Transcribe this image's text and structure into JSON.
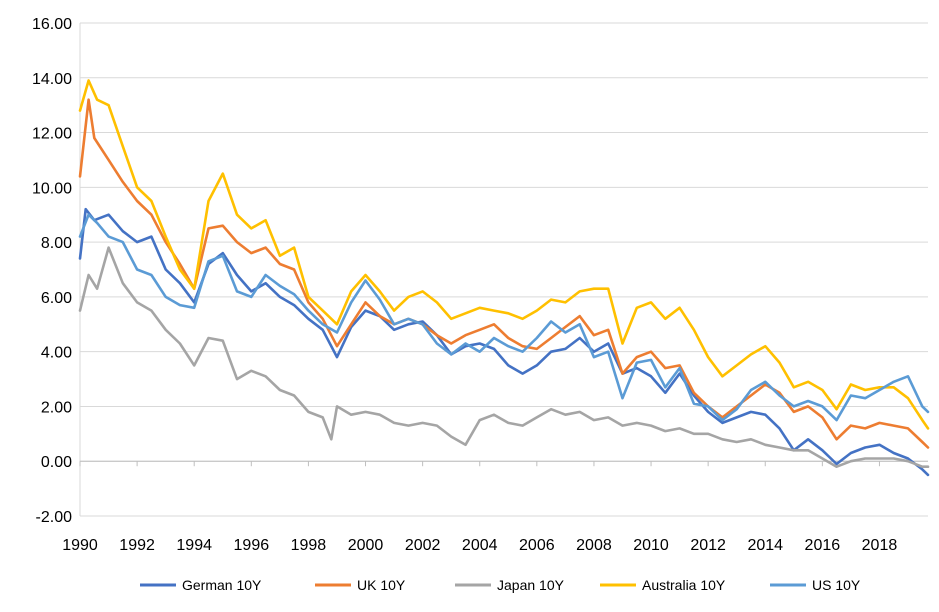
{
  "chart_data": {
    "type": "line",
    "title": "",
    "xlabel": "",
    "ylabel": "",
    "ylim": [
      -2,
      16
    ],
    "xlim": [
      1990,
      2019.7
    ],
    "grid": {
      "horizontal": true,
      "vertical": false
    },
    "legend_position": "bottom",
    "y_ticks": [
      -2,
      0,
      2,
      4,
      6,
      8,
      10,
      12,
      14,
      16
    ],
    "y_tick_labels": [
      "-2.00",
      "0.00",
      "2.00",
      "4.00",
      "6.00",
      "8.00",
      "10.00",
      "12.00",
      "14.00",
      "16.00"
    ],
    "x_ticks": [
      1990,
      1992,
      1994,
      1996,
      1998,
      2000,
      2002,
      2004,
      2006,
      2008,
      2010,
      2012,
      2014,
      2016,
      2018
    ],
    "x_tick_labels": [
      "1990",
      "1992",
      "1994",
      "1996",
      "1998",
      "2000",
      "2002",
      "2004",
      "2006",
      "2008",
      "2010",
      "2012",
      "2014",
      "2016",
      "2018"
    ],
    "series": [
      {
        "name": "German 10Y",
        "color": "#4472C4",
        "x": [
          1990.0,
          1990.2,
          1990.5,
          1991.0,
          1991.5,
          1992.0,
          1992.5,
          1993.0,
          1993.5,
          1994.0,
          1994.5,
          1995.0,
          1995.5,
          1996.0,
          1996.5,
          1997.0,
          1997.5,
          1998.0,
          1998.5,
          1999.0,
          1999.5,
          2000.0,
          2000.5,
          2001.0,
          2001.5,
          2002.0,
          2002.5,
          2003.0,
          2003.5,
          2004.0,
          2004.5,
          2005.0,
          2005.5,
          2006.0,
          2006.5,
          2007.0,
          2007.5,
          2008.0,
          2008.5,
          2009.0,
          2009.5,
          2010.0,
          2010.5,
          2011.0,
          2011.5,
          2012.0,
          2012.5,
          2013.0,
          2013.5,
          2014.0,
          2014.5,
          2015.0,
          2015.5,
          2016.0,
          2016.5,
          2017.0,
          2017.5,
          2018.0,
          2018.5,
          2019.0,
          2019.5,
          2019.7
        ],
        "values": [
          7.4,
          9.2,
          8.8,
          9.0,
          8.4,
          8.0,
          8.2,
          7.0,
          6.5,
          5.8,
          7.2,
          7.6,
          6.8,
          6.2,
          6.5,
          6.0,
          5.7,
          5.2,
          4.8,
          3.8,
          4.9,
          5.5,
          5.3,
          4.8,
          5.0,
          5.1,
          4.6,
          3.9,
          4.2,
          4.3,
          4.1,
          3.5,
          3.2,
          3.5,
          4.0,
          4.1,
          4.5,
          4.0,
          4.3,
          3.2,
          3.4,
          3.1,
          2.5,
          3.2,
          2.4,
          1.8,
          1.4,
          1.6,
          1.8,
          1.7,
          1.2,
          0.4,
          0.8,
          0.4,
          -0.1,
          0.3,
          0.5,
          0.6,
          0.3,
          0.1,
          -0.3,
          -0.5
        ]
      },
      {
        "name": "UK 10Y",
        "color": "#ED7D31",
        "x": [
          1990.0,
          1990.3,
          1990.5,
          1991.0,
          1991.5,
          1992.0,
          1992.5,
          1993.0,
          1993.5,
          1994.0,
          1994.5,
          1995.0,
          1995.5,
          1996.0,
          1996.5,
          1997.0,
          1997.5,
          1998.0,
          1998.5,
          1999.0,
          1999.5,
          2000.0,
          2000.5,
          2001.0,
          2001.5,
          2002.0,
          2002.5,
          2003.0,
          2003.5,
          2004.0,
          2004.5,
          2005.0,
          2005.5,
          2006.0,
          2006.5,
          2007.0,
          2007.5,
          2008.0,
          2008.5,
          2009.0,
          2009.5,
          2010.0,
          2010.5,
          2011.0,
          2011.5,
          2012.0,
          2012.5,
          2013.0,
          2013.5,
          2014.0,
          2014.5,
          2015.0,
          2015.5,
          2016.0,
          2016.5,
          2017.0,
          2017.5,
          2018.0,
          2018.5,
          2019.0,
          2019.5,
          2019.7
        ],
        "values": [
          10.4,
          13.2,
          11.8,
          11.0,
          10.2,
          9.5,
          9.0,
          8.0,
          7.2,
          6.3,
          8.5,
          8.6,
          8.0,
          7.6,
          7.8,
          7.2,
          7.0,
          5.8,
          5.2,
          4.2,
          5.0,
          5.8,
          5.3,
          5.0,
          5.2,
          5.0,
          4.6,
          4.3,
          4.6,
          4.8,
          5.0,
          4.5,
          4.2,
          4.1,
          4.5,
          4.9,
          5.3,
          4.6,
          4.8,
          3.2,
          3.8,
          4.0,
          3.4,
          3.5,
          2.5,
          2.0,
          1.6,
          2.0,
          2.4,
          2.8,
          2.5,
          1.8,
          2.0,
          1.6,
          0.8,
          1.3,
          1.2,
          1.4,
          1.3,
          1.2,
          0.7,
          0.5
        ]
      },
      {
        "name": "Japan 10Y",
        "color": "#A5A5A5",
        "x": [
          1990.0,
          1990.3,
          1990.6,
          1991.0,
          1991.5,
          1992.0,
          1992.5,
          1993.0,
          1993.5,
          1994.0,
          1994.5,
          1995.0,
          1995.5,
          1996.0,
          1996.5,
          1997.0,
          1997.5,
          1998.0,
          1998.5,
          1998.8,
          1999.0,
          1999.5,
          2000.0,
          2000.5,
          2001.0,
          2001.5,
          2002.0,
          2002.5,
          2003.0,
          2003.5,
          2004.0,
          2004.5,
          2005.0,
          2005.5,
          2006.0,
          2006.5,
          2007.0,
          2007.5,
          2008.0,
          2008.5,
          2009.0,
          2009.5,
          2010.0,
          2010.5,
          2011.0,
          2011.5,
          2012.0,
          2012.5,
          2013.0,
          2013.5,
          2014.0,
          2014.5,
          2015.0,
          2015.5,
          2016.0,
          2016.5,
          2017.0,
          2017.5,
          2018.0,
          2018.5,
          2019.0,
          2019.5,
          2019.7
        ],
        "values": [
          5.5,
          6.8,
          6.3,
          7.8,
          6.5,
          5.8,
          5.5,
          4.8,
          4.3,
          3.5,
          4.5,
          4.4,
          3.0,
          3.3,
          3.1,
          2.6,
          2.4,
          1.8,
          1.6,
          0.8,
          2.0,
          1.7,
          1.8,
          1.7,
          1.4,
          1.3,
          1.4,
          1.3,
          0.9,
          0.6,
          1.5,
          1.7,
          1.4,
          1.3,
          1.6,
          1.9,
          1.7,
          1.8,
          1.5,
          1.6,
          1.3,
          1.4,
          1.3,
          1.1,
          1.2,
          1.0,
          1.0,
          0.8,
          0.7,
          0.8,
          0.6,
          0.5,
          0.4,
          0.4,
          0.1,
          -0.2,
          0.0,
          0.1,
          0.1,
          0.1,
          0.0,
          -0.2,
          -0.2
        ]
      },
      {
        "name": "Australia 10Y",
        "color": "#FFC000",
        "x": [
          1990.0,
          1990.3,
          1990.6,
          1991.0,
          1991.5,
          1992.0,
          1992.5,
          1993.0,
          1993.5,
          1994.0,
          1994.5,
          1995.0,
          1995.5,
          1996.0,
          1996.5,
          1997.0,
          1997.5,
          1998.0,
          1998.5,
          1999.0,
          1999.5,
          2000.0,
          2000.5,
          2001.0,
          2001.5,
          2002.0,
          2002.5,
          2003.0,
          2003.5,
          2004.0,
          2004.5,
          2005.0,
          2005.5,
          2006.0,
          2006.5,
          2007.0,
          2007.5,
          2008.0,
          2008.5,
          2009.0,
          2009.5,
          2010.0,
          2010.5,
          2011.0,
          2011.5,
          2012.0,
          2012.5,
          2013.0,
          2013.5,
          2014.0,
          2014.5,
          2015.0,
          2015.5,
          2016.0,
          2016.5,
          2017.0,
          2017.5,
          2018.0,
          2018.5,
          2019.0,
          2019.5,
          2019.7
        ],
        "values": [
          12.8,
          13.9,
          13.2,
          13.0,
          11.5,
          10.0,
          9.5,
          8.2,
          7.0,
          6.3,
          9.5,
          10.5,
          9.0,
          8.5,
          8.8,
          7.5,
          7.8,
          6.0,
          5.5,
          5.0,
          6.2,
          6.8,
          6.2,
          5.5,
          6.0,
          6.2,
          5.8,
          5.2,
          5.4,
          5.6,
          5.5,
          5.4,
          5.2,
          5.5,
          5.9,
          5.8,
          6.2,
          6.3,
          6.3,
          4.3,
          5.6,
          5.8,
          5.2,
          5.6,
          4.8,
          3.8,
          3.1,
          3.5,
          3.9,
          4.2,
          3.6,
          2.7,
          2.9,
          2.6,
          1.9,
          2.8,
          2.6,
          2.7,
          2.7,
          2.3,
          1.5,
          1.2
        ]
      },
      {
        "name": "US 10Y",
        "color": "#5B9BD5",
        "x": [
          1990.0,
          1990.3,
          1990.6,
          1991.0,
          1991.5,
          1992.0,
          1992.5,
          1993.0,
          1993.5,
          1994.0,
          1994.5,
          1995.0,
          1995.5,
          1996.0,
          1996.5,
          1997.0,
          1997.5,
          1998.0,
          1998.5,
          1999.0,
          1999.5,
          2000.0,
          2000.5,
          2001.0,
          2001.5,
          2002.0,
          2002.5,
          2003.0,
          2003.5,
          2004.0,
          2004.5,
          2005.0,
          2005.5,
          2006.0,
          2006.5,
          2007.0,
          2007.5,
          2008.0,
          2008.5,
          2009.0,
          2009.5,
          2010.0,
          2010.5,
          2011.0,
          2011.5,
          2012.0,
          2012.5,
          2013.0,
          2013.5,
          2014.0,
          2014.5,
          2015.0,
          2015.5,
          2016.0,
          2016.5,
          2017.0,
          2017.5,
          2018.0,
          2018.5,
          2019.0,
          2019.5,
          2019.7
        ],
        "values": [
          8.2,
          9.0,
          8.7,
          8.2,
          8.0,
          7.0,
          6.8,
          6.0,
          5.7,
          5.6,
          7.3,
          7.5,
          6.2,
          6.0,
          6.8,
          6.4,
          6.1,
          5.5,
          5.0,
          4.7,
          5.8,
          6.6,
          5.9,
          5.0,
          5.2,
          5.0,
          4.3,
          3.9,
          4.3,
          4.0,
          4.5,
          4.2,
          4.0,
          4.5,
          5.1,
          4.7,
          5.0,
          3.8,
          4.0,
          2.3,
          3.6,
          3.7,
          2.7,
          3.4,
          2.1,
          2.0,
          1.5,
          1.9,
          2.6,
          2.9,
          2.4,
          2.0,
          2.2,
          2.0,
          1.5,
          2.4,
          2.3,
          2.6,
          2.9,
          3.1,
          2.0,
          1.8
        ]
      }
    ]
  }
}
